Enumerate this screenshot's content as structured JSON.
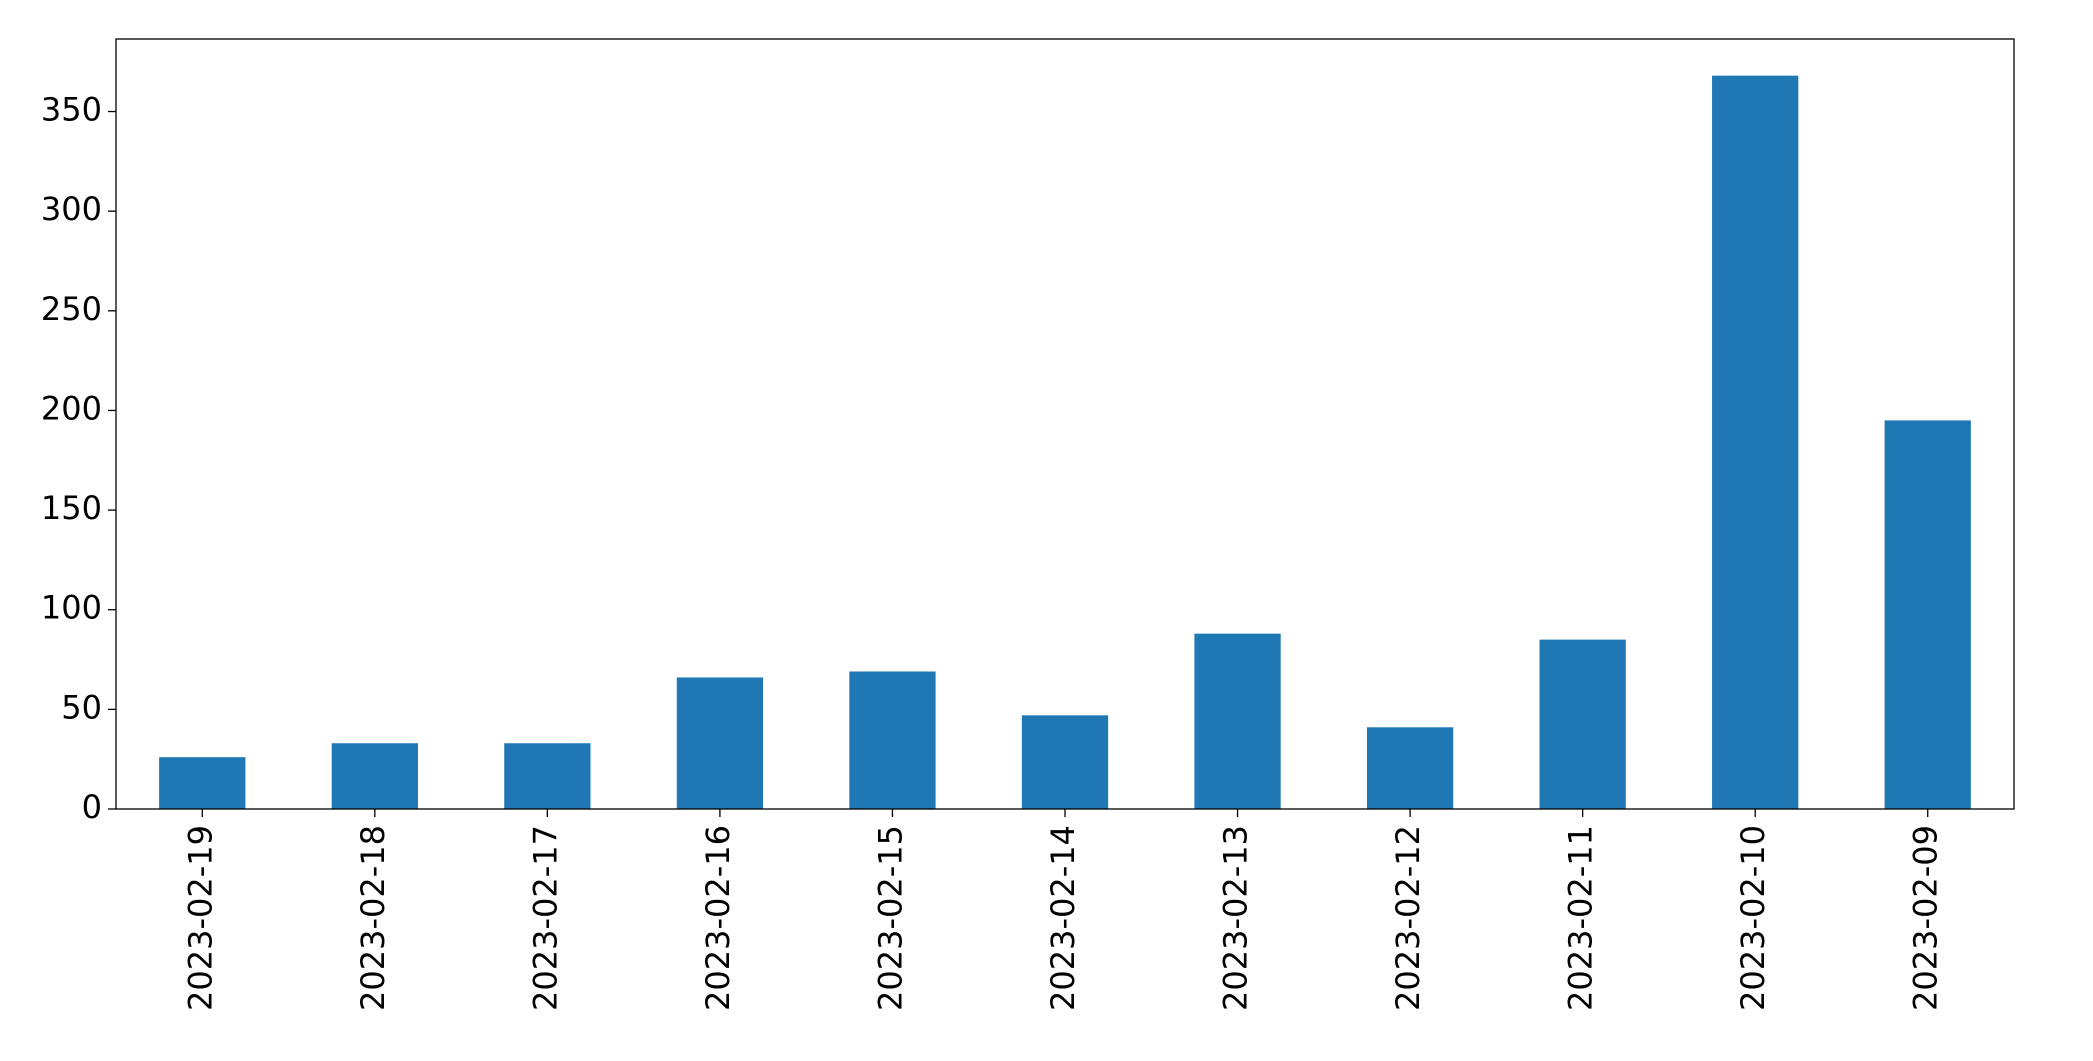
{
  "chart_data": {
    "type": "bar",
    "categories": [
      "2023-02-19",
      "2023-02-18",
      "2023-02-17",
      "2023-02-16",
      "2023-02-15",
      "2023-02-14",
      "2023-02-13",
      "2023-02-12",
      "2023-02-11",
      "2023-02-10",
      "2023-02-09"
    ],
    "values": [
      26,
      33,
      33,
      66,
      69,
      47,
      88,
      41,
      85,
      368,
      195
    ],
    "color": "#1f77b4",
    "ylim": [
      0,
      386.4
    ],
    "yticks": [
      0,
      50,
      100,
      150,
      200,
      250,
      300,
      350
    ],
    "grid": false
  }
}
